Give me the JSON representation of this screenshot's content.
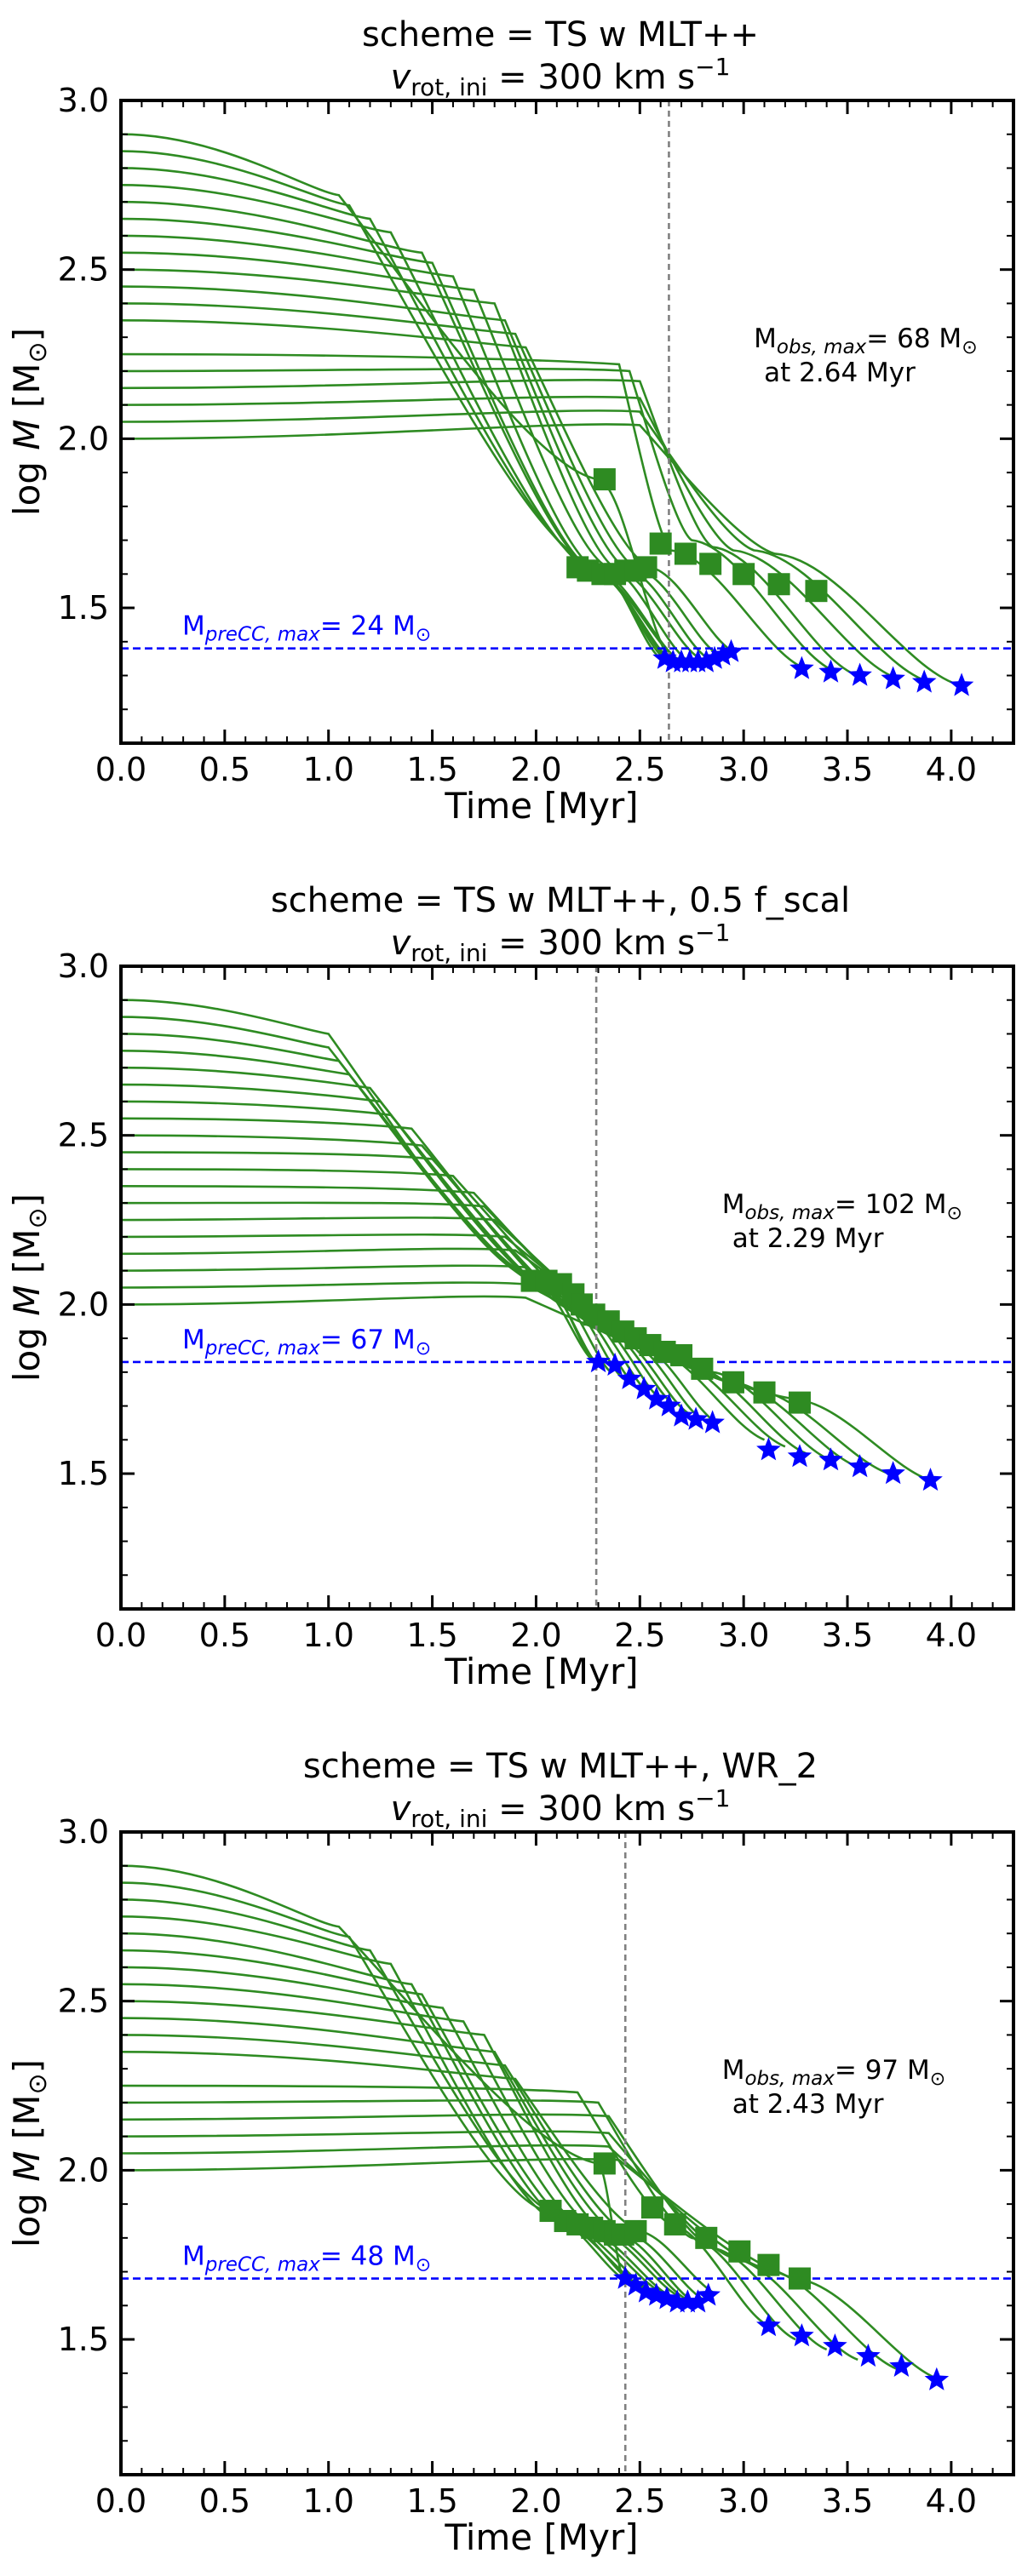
{
  "chart_data": [
    {
      "type": "line",
      "title": "scheme = TS w MLT++",
      "subtitle": {
        "prefix": "v",
        "sub": "rot, ini",
        "value": " = 300 km s",
        "sup": "−1"
      },
      "xlabel": "Time [Myr]",
      "ylabel": {
        "prefix": "log ",
        "var": "M",
        "unit": " [M",
        "sym": "⊙",
        "close": "]"
      },
      "xlim": [
        0.0,
        4.3
      ],
      "ylim": [
        1.1,
        3.0
      ],
      "xticks": [
        "0.0",
        "0.5",
        "1.0",
        "1.5",
        "2.0",
        "2.5",
        "3.0",
        "3.5",
        "4.0"
      ],
      "yticks": [
        "1.5",
        "2.0",
        "2.5",
        "3.0"
      ],
      "t_obs": 2.64,
      "logM_preCC": 1.38,
      "obs_label": {
        "main": "M",
        "sub": "obs, max",
        "value": "= 68 M",
        "sym": "⊙",
        "line2": "at 2.64 Myr"
      },
      "precc_label": {
        "main": "M",
        "sub": "preCC, max",
        "value": "= 24 M",
        "sym": "⊙"
      },
      "tracks": {
        "start_logM": [
          2.0,
          2.05,
          2.1,
          2.15,
          2.2,
          2.25,
          2.35,
          2.4,
          2.45,
          2.5,
          2.55,
          2.6,
          2.65,
          2.7,
          2.75,
          2.8,
          2.85,
          2.9
        ],
        "knee_t": [
          2.5,
          2.5,
          2.5,
          2.5,
          2.45,
          2.4,
          1.95,
          1.9,
          1.85,
          1.8,
          1.7,
          1.6,
          1.5,
          1.45,
          1.3,
          1.2,
          1.1,
          1.05
        ],
        "knee_logM": [
          2.04,
          2.08,
          2.12,
          2.17,
          2.2,
          2.22,
          2.27,
          2.31,
          2.35,
          2.4,
          2.44,
          2.48,
          2.52,
          2.55,
          2.61,
          2.65,
          2.69,
          2.72
        ],
        "mid_t": [
          3.15,
          3.05,
          2.95,
          2.85,
          2.75,
          2.65,
          2.55,
          2.5,
          2.45,
          2.4,
          2.35,
          2.3,
          2.3,
          2.3,
          2.3,
          2.3,
          2.3,
          2.3
        ],
        "mid_logM": [
          1.66,
          1.67,
          1.67,
          1.68,
          1.7,
          1.67,
          1.62,
          1.61,
          1.61,
          1.61,
          1.62,
          1.61,
          1.6,
          1.6,
          1.6,
          1.61,
          1.62,
          1.88
        ],
        "end_t": [
          4.05,
          3.9,
          3.75,
          3.55,
          3.45,
          3.3,
          2.95,
          2.88,
          2.83,
          2.79,
          2.74,
          2.7,
          2.68,
          2.66,
          2.65,
          2.62,
          2.6,
          2.66
        ],
        "end_logM": [
          1.27,
          1.28,
          1.29,
          1.3,
          1.31,
          1.32,
          1.37,
          1.36,
          1.35,
          1.35,
          1.34,
          1.34,
          1.35,
          1.34,
          1.34,
          1.35,
          1.35,
          1.34
        ]
      },
      "squares": [
        [
          2.33,
          1.88
        ],
        [
          2.2,
          1.62
        ],
        [
          2.25,
          1.61
        ],
        [
          2.32,
          1.6
        ],
        [
          2.38,
          1.6
        ],
        [
          2.43,
          1.61
        ],
        [
          2.48,
          1.61
        ],
        [
          2.53,
          1.62
        ],
        [
          2.6,
          1.69
        ],
        [
          2.72,
          1.66
        ],
        [
          2.84,
          1.63
        ],
        [
          3.0,
          1.6
        ],
        [
          3.17,
          1.57
        ],
        [
          3.35,
          1.55
        ]
      ],
      "stars": [
        [
          2.62,
          1.35
        ],
        [
          2.66,
          1.34
        ],
        [
          2.7,
          1.34
        ],
        [
          2.74,
          1.34
        ],
        [
          2.78,
          1.34
        ],
        [
          2.82,
          1.34
        ],
        [
          2.86,
          1.35
        ],
        [
          2.9,
          1.36
        ],
        [
          2.94,
          1.37
        ],
        [
          3.28,
          1.32
        ],
        [
          3.42,
          1.31
        ],
        [
          3.56,
          1.3
        ],
        [
          3.72,
          1.29
        ],
        [
          3.87,
          1.28
        ],
        [
          4.05,
          1.27
        ]
      ]
    },
    {
      "type": "line",
      "title": "scheme = TS w MLT++, 0.5 f_scal",
      "subtitle": {
        "prefix": "v",
        "sub": "rot, ini",
        "value": " = 300 km s",
        "sup": "−1"
      },
      "xlabel": "Time [Myr]",
      "ylabel": {
        "prefix": "log ",
        "var": "M",
        "unit": " [M",
        "sym": "⊙",
        "close": "]"
      },
      "xlim": [
        0.0,
        4.3
      ],
      "ylim": [
        1.1,
        3.0
      ],
      "xticks": [
        "0.0",
        "0.5",
        "1.0",
        "1.5",
        "2.0",
        "2.5",
        "3.0",
        "3.5",
        "4.0"
      ],
      "yticks": [
        "1.5",
        "2.0",
        "2.5",
        "3.0"
      ],
      "t_obs": 2.29,
      "logM_preCC": 1.83,
      "obs_label": {
        "main": "M",
        "sub": "obs, max",
        "value": "= 102 M",
        "sym": "⊙",
        "line2": "at 2.29 Myr"
      },
      "precc_label": {
        "main": "M",
        "sub": "preCC, max",
        "value": "= 67 M",
        "sym": "⊙"
      },
      "tracks": {
        "start_logM": [
          2.0,
          2.05,
          2.1,
          2.15,
          2.2,
          2.25,
          2.3,
          2.35,
          2.4,
          2.45,
          2.5,
          2.55,
          2.6,
          2.65,
          2.7,
          2.75,
          2.8,
          2.85,
          2.9
        ],
        "knee_t": [
          1.95,
          1.95,
          1.95,
          1.9,
          1.85,
          1.8,
          1.75,
          1.7,
          1.6,
          1.5,
          1.45,
          1.4,
          1.3,
          1.25,
          1.2,
          1.1,
          1.05,
          1.0,
          1.0
        ],
        "knee_logM": [
          2.02,
          2.06,
          2.11,
          2.16,
          2.2,
          2.25,
          2.29,
          2.33,
          2.38,
          2.43,
          2.47,
          2.52,
          2.56,
          2.6,
          2.64,
          2.68,
          2.72,
          2.76,
          2.8
        ],
        "mid_t": [
          3.25,
          3.05,
          2.95,
          2.85,
          2.75,
          2.65,
          2.55,
          2.5,
          2.45,
          2.4,
          2.35,
          2.3,
          2.25,
          2.2,
          2.15,
          2.1,
          2.05,
          2.05,
          2.0
        ],
        "mid_logM": [
          1.72,
          1.75,
          1.77,
          1.8,
          1.82,
          1.84,
          1.87,
          1.88,
          1.89,
          1.9,
          1.92,
          1.94,
          1.96,
          1.98,
          2.01,
          2.03,
          2.05,
          2.06,
          2.07
        ],
        "end_t": [
          3.9,
          3.7,
          3.55,
          3.42,
          3.3,
          3.2,
          3.1,
          2.87,
          2.8,
          2.73,
          2.67,
          2.6,
          2.54,
          2.48,
          2.42,
          2.36,
          2.3,
          2.28,
          2.28
        ],
        "end_logM": [
          1.48,
          1.5,
          1.52,
          1.54,
          1.56,
          1.58,
          1.6,
          1.65,
          1.66,
          1.68,
          1.7,
          1.72,
          1.74,
          1.76,
          1.78,
          1.8,
          1.82,
          1.83,
          1.83
        ]
      },
      "squares": [
        [
          1.98,
          2.07
        ],
        [
          2.05,
          2.07
        ],
        [
          2.12,
          2.06
        ],
        [
          2.18,
          2.03
        ],
        [
          2.22,
          2.0
        ],
        [
          2.28,
          1.97
        ],
        [
          2.35,
          1.95
        ],
        [
          2.42,
          1.92
        ],
        [
          2.48,
          1.9
        ],
        [
          2.55,
          1.88
        ],
        [
          2.62,
          1.86
        ],
        [
          2.7,
          1.85
        ],
        [
          2.8,
          1.81
        ],
        [
          2.95,
          1.77
        ],
        [
          3.1,
          1.74
        ],
        [
          3.27,
          1.71
        ]
      ],
      "stars": [
        [
          2.3,
          1.83
        ],
        [
          2.38,
          1.82
        ],
        [
          2.45,
          1.78
        ],
        [
          2.52,
          1.75
        ],
        [
          2.58,
          1.72
        ],
        [
          2.64,
          1.7
        ],
        [
          2.7,
          1.67
        ],
        [
          2.77,
          1.66
        ],
        [
          2.85,
          1.65
        ],
        [
          3.12,
          1.57
        ],
        [
          3.27,
          1.55
        ],
        [
          3.42,
          1.54
        ],
        [
          3.56,
          1.52
        ],
        [
          3.72,
          1.5
        ],
        [
          3.9,
          1.48
        ]
      ]
    },
    {
      "type": "line",
      "title": "scheme = TS w MLT++, WR_2",
      "subtitle": {
        "prefix": "v",
        "sub": "rot, ini",
        "value": " = 300 km s",
        "sup": "−1"
      },
      "xlabel": "Time [Myr]",
      "ylabel": {
        "prefix": "log ",
        "var": "M",
        "unit": " [M",
        "sym": "⊙",
        "close": "]"
      },
      "xlim": [
        0.0,
        4.3
      ],
      "ylim": [
        1.1,
        3.0
      ],
      "xticks": [
        "0.0",
        "0.5",
        "1.0",
        "1.5",
        "2.0",
        "2.5",
        "3.0",
        "3.5",
        "4.0"
      ],
      "yticks": [
        "1.5",
        "2.0",
        "2.5",
        "3.0"
      ],
      "t_obs": 2.43,
      "logM_preCC": 1.68,
      "obs_label": {
        "main": "M",
        "sub": "obs, max",
        "value": "= 97 M",
        "sym": "⊙",
        "line2": "at 2.43 Myr"
      },
      "precc_label": {
        "main": "M",
        "sub": "preCC, max",
        "value": "= 48 M",
        "sym": "⊙"
      },
      "tracks": {
        "start_logM": [
          2.0,
          2.05,
          2.1,
          2.15,
          2.2,
          2.25,
          2.35,
          2.4,
          2.45,
          2.5,
          2.55,
          2.6,
          2.65,
          2.7,
          2.75,
          2.8,
          2.85,
          2.9
        ],
        "knee_t": [
          2.4,
          2.35,
          2.35,
          2.35,
          2.3,
          2.2,
          1.9,
          1.85,
          1.8,
          1.75,
          1.65,
          1.55,
          1.45,
          1.4,
          1.3,
          1.2,
          1.1,
          1.05
        ],
        "knee_logM": [
          2.03,
          2.07,
          2.11,
          2.16,
          2.2,
          2.23,
          2.27,
          2.31,
          2.35,
          2.4,
          2.44,
          2.48,
          2.52,
          2.55,
          2.61,
          2.65,
          2.69,
          2.72
        ],
        "mid_t": [
          3.25,
          3.1,
          2.95,
          2.85,
          2.75,
          2.65,
          2.5,
          2.45,
          2.4,
          2.35,
          2.3,
          2.25,
          2.2,
          2.15,
          2.1,
          2.1,
          2.05,
          2.3
        ],
        "mid_logM": [
          1.68,
          1.71,
          1.74,
          1.77,
          1.8,
          1.84,
          1.82,
          1.81,
          1.81,
          1.81,
          1.82,
          1.82,
          1.83,
          1.84,
          1.85,
          1.87,
          1.88,
          2.02
        ],
        "end_t": [
          3.95,
          3.75,
          3.55,
          3.4,
          3.25,
          3.12,
          2.85,
          2.8,
          2.76,
          2.72,
          2.68,
          2.64,
          2.6,
          2.56,
          2.52,
          2.48,
          2.44,
          2.42
        ],
        "end_logM": [
          1.38,
          1.41,
          1.44,
          1.47,
          1.5,
          1.54,
          1.64,
          1.62,
          1.61,
          1.62,
          1.63,
          1.63,
          1.64,
          1.64,
          1.65,
          1.66,
          1.67,
          1.68
        ]
      },
      "squares": [
        [
          2.33,
          2.02
        ],
        [
          2.07,
          1.88
        ],
        [
          2.14,
          1.85
        ],
        [
          2.2,
          1.84
        ],
        [
          2.27,
          1.83
        ],
        [
          2.33,
          1.82
        ],
        [
          2.38,
          1.81
        ],
        [
          2.42,
          1.81
        ],
        [
          2.48,
          1.82
        ],
        [
          2.56,
          1.89
        ],
        [
          2.67,
          1.84
        ],
        [
          2.82,
          1.8
        ],
        [
          2.98,
          1.76
        ],
        [
          3.12,
          1.72
        ],
        [
          3.27,
          1.68
        ]
      ],
      "stars": [
        [
          2.43,
          1.68
        ],
        [
          2.48,
          1.66
        ],
        [
          2.53,
          1.64
        ],
        [
          2.58,
          1.63
        ],
        [
          2.63,
          1.62
        ],
        [
          2.68,
          1.61
        ],
        [
          2.73,
          1.61
        ],
        [
          2.78,
          1.61
        ],
        [
          2.83,
          1.63
        ],
        [
          3.12,
          1.54
        ],
        [
          3.28,
          1.51
        ],
        [
          3.44,
          1.48
        ],
        [
          3.6,
          1.45
        ],
        [
          3.76,
          1.42
        ],
        [
          3.93,
          1.38
        ]
      ]
    }
  ],
  "colors": {
    "tracks": "#2e8b22",
    "squares": "#2e8b22",
    "stars": "#0000ff",
    "precc_line": "#0000ff",
    "obs_line": "#808080",
    "axes": "#000000"
  }
}
